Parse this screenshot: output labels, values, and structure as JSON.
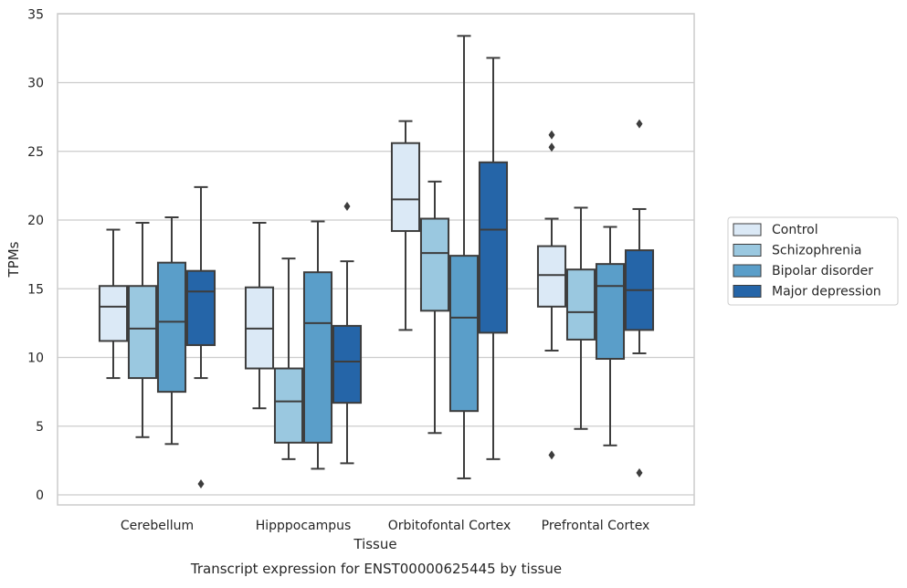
{
  "caption": "Transcript expression for ENST00000625445 by tissue",
  "chart_data": {
    "type": "box",
    "xlabel": "Tissue",
    "ylabel": "TPMs",
    "ylim": [
      -0.8,
      35
    ],
    "yticks": [
      0,
      5,
      10,
      15,
      20,
      25,
      30,
      35
    ],
    "grid": "horizontal",
    "legend_placement": "right",
    "categories": [
      "Cerebellum",
      "Hipppocampus",
      "Orbitofontal Cortex",
      "Prefrontal Cortex"
    ],
    "series": [
      {
        "name": "Control",
        "color": "#dbe9f6",
        "boxes": [
          {
            "whislo": 8.5,
            "q1": 11.2,
            "med": 13.7,
            "q3": 15.2,
            "whishi": 19.3,
            "fliers": []
          },
          {
            "whislo": 6.3,
            "q1": 9.2,
            "med": 12.1,
            "q3": 15.1,
            "whishi": 19.8,
            "fliers": []
          },
          {
            "whislo": 12.0,
            "q1": 19.2,
            "med": 21.5,
            "q3": 25.6,
            "whishi": 27.2,
            "fliers": []
          },
          {
            "whislo": 10.5,
            "q1": 13.7,
            "med": 16.0,
            "q3": 18.1,
            "whishi": 20.1,
            "fliers": [
              2.9,
              25.3,
              26.2
            ]
          }
        ]
      },
      {
        "name": "Schizophrenia",
        "color": "#9ac8e0",
        "boxes": [
          {
            "whislo": 4.2,
            "q1": 8.5,
            "med": 12.1,
            "q3": 15.2,
            "whishi": 19.8,
            "fliers": []
          },
          {
            "whislo": 2.6,
            "q1": 3.8,
            "med": 6.8,
            "q3": 9.2,
            "whishi": 17.2,
            "fliers": []
          },
          {
            "whislo": 4.5,
            "q1": 13.4,
            "med": 17.6,
            "q3": 20.1,
            "whishi": 22.8,
            "fliers": []
          },
          {
            "whislo": 4.8,
            "q1": 11.3,
            "med": 13.3,
            "q3": 16.4,
            "whishi": 20.9,
            "fliers": []
          }
        ]
      },
      {
        "name": "Bipolar disorder",
        "color": "#5a9ec9",
        "boxes": [
          {
            "whislo": 3.7,
            "q1": 7.5,
            "med": 12.6,
            "q3": 16.9,
            "whishi": 20.2,
            "fliers": []
          },
          {
            "whislo": 1.9,
            "q1": 3.8,
            "med": 12.5,
            "q3": 16.2,
            "whishi": 19.9,
            "fliers": []
          },
          {
            "whislo": 1.2,
            "q1": 6.1,
            "med": 12.9,
            "q3": 17.4,
            "whishi": 33.4,
            "fliers": []
          },
          {
            "whislo": 3.6,
            "q1": 9.9,
            "med": 15.2,
            "q3": 16.8,
            "whishi": 19.5,
            "fliers": []
          }
        ]
      },
      {
        "name": "Major depression",
        "color": "#2565a8",
        "boxes": [
          {
            "whislo": 8.5,
            "q1": 10.9,
            "med": 14.8,
            "q3": 16.3,
            "whishi": 22.4,
            "fliers": [
              0.8
            ]
          },
          {
            "whislo": 2.3,
            "q1": 6.7,
            "med": 9.7,
            "q3": 12.3,
            "whishi": 17.0,
            "fliers": [
              21.0
            ]
          },
          {
            "whislo": 2.6,
            "q1": 11.8,
            "med": 19.3,
            "q3": 24.2,
            "whishi": 31.8,
            "fliers": []
          },
          {
            "whislo": 10.3,
            "q1": 12.0,
            "med": 14.9,
            "q3": 17.8,
            "whishi": 20.8,
            "fliers": [
              1.6,
              27.0
            ]
          }
        ]
      }
    ]
  }
}
